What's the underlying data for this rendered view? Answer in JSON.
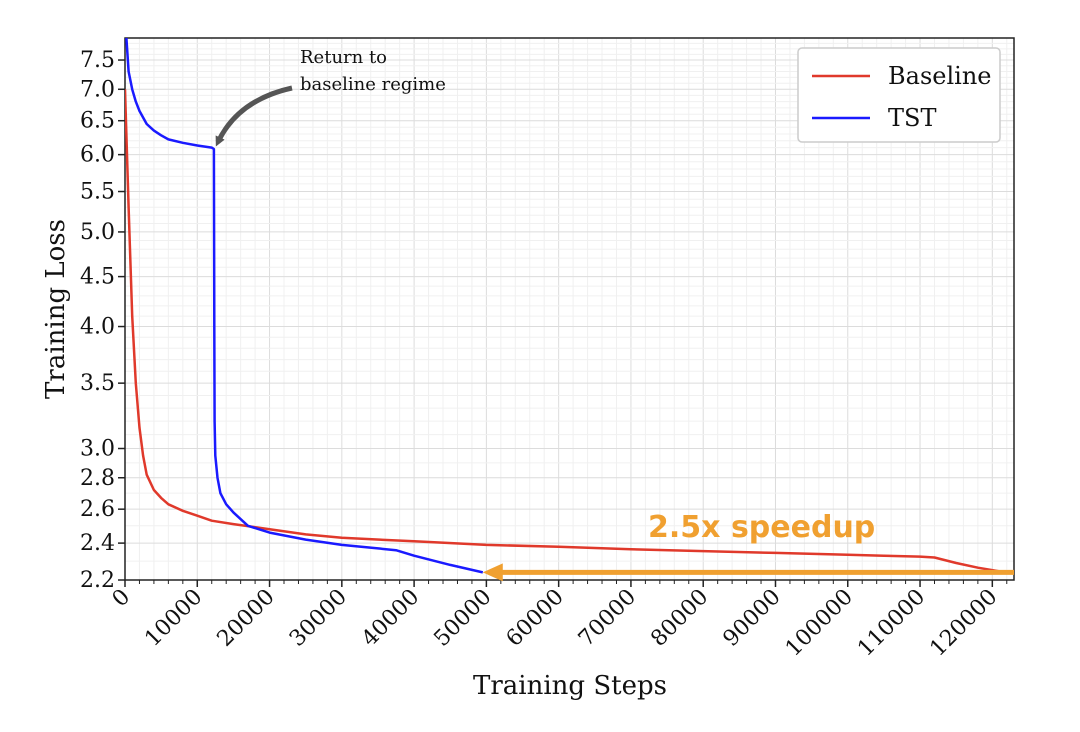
{
  "chart_data": {
    "type": "line",
    "xlabel": "Training Steps",
    "ylabel": "Training Loss",
    "x_range": [
      0,
      123000
    ],
    "y_range": [
      2.2,
      7.9
    ],
    "y_scale": "log",
    "grid": true,
    "legend_position": "top-right",
    "x_ticks": [
      0,
      10000,
      20000,
      30000,
      40000,
      50000,
      60000,
      70000,
      80000,
      90000,
      100000,
      110000,
      120000
    ],
    "x_tick_labels": [
      "0",
      "10000",
      "20000",
      "30000",
      "40000",
      "50000",
      "60000",
      "70000",
      "80000",
      "90000",
      "100000",
      "110000",
      "120000"
    ],
    "y_ticks": [
      2.2,
      2.4,
      2.6,
      2.8,
      3.0,
      3.5,
      4.0,
      4.5,
      5.0,
      5.5,
      6.0,
      6.5,
      7.0,
      7.5
    ],
    "y_tick_labels": [
      "2.2",
      "2.4",
      "2.6",
      "2.8",
      "3.0",
      "3.5",
      "4.0",
      "4.5",
      "5.0",
      "5.5",
      "6.0",
      "6.5",
      "7.0",
      "7.5"
    ],
    "series": [
      {
        "name": "Baseline",
        "color": "#e0392b",
        "x": [
          0,
          500,
          1000,
          1500,
          2000,
          2500,
          3000,
          4000,
          5000,
          6000,
          8000,
          10000,
          12000,
          15000,
          20000,
          25000,
          30000,
          40000,
          50000,
          60000,
          70000,
          80000,
          90000,
          100000,
          105000,
          110000,
          112000,
          115000,
          118000,
          121000,
          123000
        ],
        "y": [
          7.0,
          5.3,
          4.1,
          3.5,
          3.15,
          2.95,
          2.82,
          2.72,
          2.67,
          2.63,
          2.59,
          2.56,
          2.53,
          2.51,
          2.48,
          2.45,
          2.43,
          2.41,
          2.39,
          2.38,
          2.365,
          2.355,
          2.345,
          2.335,
          2.33,
          2.325,
          2.32,
          2.29,
          2.265,
          2.245,
          2.24
        ]
      },
      {
        "name": "TST",
        "color": "#1a1aff",
        "x": [
          200,
          500,
          1000,
          1500,
          2000,
          3000,
          4000,
          5000,
          6000,
          8000,
          10000,
          12000,
          12300,
          12350,
          12400,
          12500,
          12800,
          13200,
          14000,
          15000,
          17000,
          20000,
          25000,
          30000,
          35000,
          37500,
          40000,
          45000,
          49500
        ],
        "y": [
          7.9,
          7.3,
          7.0,
          6.8,
          6.65,
          6.45,
          6.35,
          6.28,
          6.22,
          6.17,
          6.13,
          6.1,
          6.08,
          4.0,
          3.2,
          2.95,
          2.8,
          2.7,
          2.63,
          2.58,
          2.5,
          2.46,
          2.42,
          2.39,
          2.37,
          2.36,
          2.33,
          2.28,
          2.24
        ]
      }
    ],
    "annotations": [
      {
        "text_lines": [
          "Return to",
          "baseline regime"
        ],
        "x": 12300,
        "y": 6.15,
        "kind": "curved-arrow",
        "color": "#555555"
      },
      {
        "text": "2.5x speedup",
        "kind": "arrow",
        "x_from": 123000,
        "x_to": 49500,
        "y": 2.24,
        "color": "#f0a030"
      }
    ]
  }
}
